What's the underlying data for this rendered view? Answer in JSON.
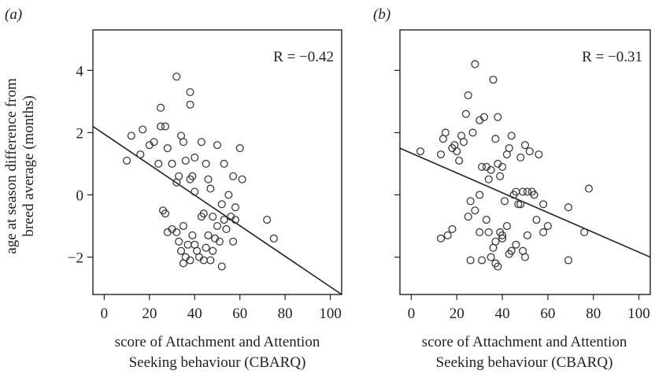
{
  "chart_data": [
    {
      "type": "scatter",
      "panel_label": "(a)",
      "annotation": "R = −0.42",
      "xlabel_line1": "score of Attachment and Attention",
      "xlabel_line2": "Seeking  behaviour (CBARQ)",
      "ylabel_line1": "age at season difference from",
      "ylabel_line2": "breed average (months)",
      "xlim": [
        -5,
        105
      ],
      "ylim": [
        -3.2,
        5.3
      ],
      "x_ticks": [
        0,
        20,
        40,
        60,
        80,
        100
      ],
      "x_tick_labels": [
        "0",
        "20",
        "40",
        "60",
        "80",
        "100"
      ],
      "y_ticks": [
        -2,
        0,
        2,
        4
      ],
      "y_tick_labels": [
        "−2",
        "0",
        "2",
        "4"
      ],
      "fit_line": {
        "x": [
          -5,
          105
        ],
        "y": [
          2.2,
          -3.2
        ]
      },
      "points": [
        [
          10,
          1.1
        ],
        [
          12,
          1.9
        ],
        [
          16,
          1.3
        ],
        [
          17,
          2.1
        ],
        [
          20,
          1.6
        ],
        [
          22,
          1.7
        ],
        [
          24,
          1.0
        ],
        [
          25,
          2.8
        ],
        [
          25,
          2.2
        ],
        [
          27,
          2.2
        ],
        [
          28,
          1.5
        ],
        [
          30,
          1.0
        ],
        [
          32,
          3.8
        ],
        [
          33,
          0.6
        ],
        [
          34,
          1.9
        ],
        [
          35,
          1.7
        ],
        [
          36,
          1.1
        ],
        [
          38,
          2.9
        ],
        [
          38,
          3.3
        ],
        [
          38,
          0.5
        ],
        [
          39,
          0.6
        ],
        [
          40,
          1.2
        ],
        [
          43,
          1.7
        ],
        [
          45,
          1.0
        ],
        [
          46,
          0.5
        ],
        [
          47,
          0.2
        ],
        [
          48,
          -0.7
        ],
        [
          50,
          1.6
        ],
        [
          52,
          -0.3
        ],
        [
          53,
          1.0
        ],
        [
          55,
          0.0
        ],
        [
          56,
          -0.7
        ],
        [
          57,
          0.6
        ],
        [
          58,
          -0.4
        ],
        [
          60,
          1.5
        ],
        [
          61,
          0.5
        ],
        [
          26,
          -0.5
        ],
        [
          27,
          -0.6
        ],
        [
          28,
          -1.2
        ],
        [
          30,
          -1.1
        ],
        [
          32,
          -1.2
        ],
        [
          33,
          -1.5
        ],
        [
          34,
          -1.8
        ],
        [
          35,
          -1.0
        ],
        [
          36,
          -2.0
        ],
        [
          37,
          -1.6
        ],
        [
          38,
          -2.1
        ],
        [
          39,
          -1.3
        ],
        [
          40,
          -1.6
        ],
        [
          41,
          -1.8
        ],
        [
          42,
          -2.0
        ],
        [
          43,
          -0.7
        ],
        [
          44,
          -0.6
        ],
        [
          45,
          -1.7
        ],
        [
          46,
          -1.3
        ],
        [
          47,
          -2.1
        ],
        [
          48,
          -1.8
        ],
        [
          49,
          -1.4
        ],
        [
          50,
          -1.0
        ],
        [
          51,
          -1.5
        ],
        [
          52,
          -2.3
        ],
        [
          53,
          -0.8
        ],
        [
          54,
          -1.1
        ],
        [
          57,
          -1.5
        ],
        [
          58,
          -0.8
        ],
        [
          72,
          -0.8
        ],
        [
          75,
          -1.4
        ],
        [
          32,
          0.4
        ],
        [
          35,
          -2.2
        ],
        [
          44,
          -2.1
        ],
        [
          40,
          0.1
        ]
      ]
    },
    {
      "type": "scatter",
      "panel_label": "(b)",
      "annotation": "R = −0.31",
      "xlabel_line1": "score of Attachment and Attention",
      "xlabel_line2": "Seeking behaviour (CBARQ)",
      "xlim": [
        -5,
        105
      ],
      "ylim": [
        -3.2,
        5.3
      ],
      "x_ticks": [
        0,
        20,
        40,
        60,
        80,
        100
      ],
      "x_tick_labels": [
        "0",
        "20",
        "40",
        "60",
        "80",
        "100"
      ],
      "y_ticks": [
        -2,
        0,
        2,
        4
      ],
      "fit_line": {
        "x": [
          -5,
          105
        ],
        "y": [
          1.5,
          -2.0
        ]
      },
      "points": [
        [
          4,
          1.4
        ],
        [
          13,
          1.3
        ],
        [
          14,
          1.8
        ],
        [
          15,
          2.0
        ],
        [
          18,
          1.5
        ],
        [
          19,
          1.6
        ],
        [
          20,
          1.4
        ],
        [
          21,
          1.1
        ],
        [
          22,
          1.9
        ],
        [
          23,
          1.7
        ],
        [
          24,
          2.6
        ],
        [
          25,
          3.2
        ],
        [
          27,
          2.0
        ],
        [
          28,
          4.2
        ],
        [
          30,
          2.4
        ],
        [
          31,
          0.9
        ],
        [
          32,
          2.5
        ],
        [
          33,
          0.9
        ],
        [
          34,
          0.5
        ],
        [
          35,
          0.8
        ],
        [
          36,
          3.7
        ],
        [
          37,
          1.8
        ],
        [
          38,
          1.0
        ],
        [
          38,
          2.5
        ],
        [
          39,
          0.6
        ],
        [
          40,
          0.9
        ],
        [
          41,
          -0.2
        ],
        [
          42,
          1.3
        ],
        [
          43,
          1.5
        ],
        [
          44,
          1.9
        ],
        [
          45,
          0.0
        ],
        [
          46,
          0.1
        ],
        [
          47,
          -0.3
        ],
        [
          48,
          1.2
        ],
        [
          49,
          0.1
        ],
        [
          50,
          1.6
        ],
        [
          51,
          0.1
        ],
        [
          52,
          1.4
        ],
        [
          53,
          0.1
        ],
        [
          54,
          0.0
        ],
        [
          56,
          1.3
        ],
        [
          58,
          -0.3
        ],
        [
          60,
          -1.0
        ],
        [
          13,
          -1.4
        ],
        [
          16,
          -1.3
        ],
        [
          18,
          -1.1
        ],
        [
          25,
          -0.7
        ],
        [
          26,
          -0.2
        ],
        [
          26,
          -2.1
        ],
        [
          28,
          -0.5
        ],
        [
          30,
          -1.2
        ],
        [
          31,
          -2.1
        ],
        [
          33,
          -0.8
        ],
        [
          34,
          -1.2
        ],
        [
          35,
          -2.0
        ],
        [
          36,
          -1.7
        ],
        [
          37,
          -1.5
        ],
        [
          37,
          -2.2
        ],
        [
          38,
          -2.3
        ],
        [
          39,
          -1.2
        ],
        [
          40,
          -1.3
        ],
        [
          42,
          -1.0
        ],
        [
          43,
          -1.9
        ],
        [
          44,
          -1.8
        ],
        [
          46,
          -1.6
        ],
        [
          48,
          -0.3
        ],
        [
          49,
          -1.8
        ],
        [
          50,
          -2.0
        ],
        [
          51,
          -1.3
        ],
        [
          55,
          -0.8
        ],
        [
          58,
          -1.2
        ],
        [
          69,
          -0.4
        ],
        [
          69,
          -2.1
        ],
        [
          76,
          -1.2
        ],
        [
          78,
          0.2
        ],
        [
          30,
          0.0
        ],
        [
          40,
          -1.4
        ]
      ]
    }
  ]
}
